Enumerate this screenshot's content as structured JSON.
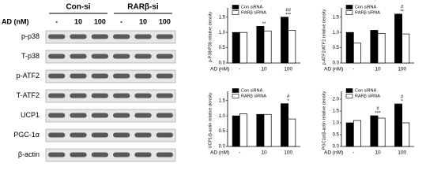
{
  "blot": {
    "groups": [
      "Con-si",
      "RARβ-si"
    ],
    "dose_label": "AD (nM)",
    "lanes": [
      "-",
      "10",
      "100",
      "-",
      "10",
      "100"
    ],
    "rows": [
      "p-p38",
      "T-p38",
      "p-ATF2",
      "T-ATF2",
      "UCP1",
      "PGC-1α",
      "β-actin"
    ]
  },
  "chart_data": [
    {
      "type": "bar",
      "ylabel": "p-P38/P38 relative density",
      "xlabel": "AD (nM)",
      "categories": [
        "-",
        "10",
        "100"
      ],
      "series": [
        {
          "name": "Con siRNA",
          "color": "#000000",
          "values": [
            1.0,
            1.2,
            1.5
          ]
        },
        {
          "name": "RARβ siRNA",
          "color": "#ffffff",
          "values": [
            1.0,
            1.05,
            1.07
          ]
        }
      ],
      "ylim": [
        0,
        1.7
      ],
      "yticks": [
        {
          "value": 0,
          "label": "0.0"
        },
        0.5,
        {
          "value": 1,
          "label": "1.0"
        },
        1.5
      ],
      "annotations": [
        {
          "text": "**",
          "category": "10"
        },
        {
          "text": "***",
          "category": "100"
        },
        {
          "text": "##",
          "category": "100"
        }
      ]
    },
    {
      "type": "bar",
      "ylabel": "p-ATF2/ATF2 relative density",
      "xlabel": "AD (nM)",
      "categories": [
        "-",
        "10",
        "100"
      ],
      "series": [
        {
          "name": "Con siRNA",
          "color": "#000000",
          "values": [
            1.0,
            1.07,
            1.6
          ]
        },
        {
          "name": "RARβ siRNA",
          "color": "#ffffff",
          "values": [
            0.65,
            0.97,
            0.95
          ]
        }
      ],
      "ylim": [
        0,
        1.7
      ],
      "yticks": [
        {
          "value": 0,
          "label": "0.0"
        },
        0.5,
        {
          "value": 1,
          "label": "1.0"
        },
        1.5
      ],
      "annotations": [
        {
          "text": "**",
          "category": "100"
        },
        {
          "text": "#",
          "category": "100"
        }
      ]
    },
    {
      "type": "bar",
      "ylabel": "UCP1/β-actin relative density",
      "xlabel": "AD (nM)",
      "categories": [
        "-",
        "10",
        "100"
      ],
      "series": [
        {
          "name": "Con siRNA",
          "color": "#000000",
          "values": [
            1.0,
            1.05,
            1.4
          ]
        },
        {
          "name": "RARβ siRNA",
          "color": "#ffffff",
          "values": [
            1.07,
            1.05,
            0.9
          ]
        }
      ],
      "ylim": [
        0,
        1.7
      ],
      "yticks": [
        {
          "value": 0,
          "label": "0.0"
        },
        0.5,
        {
          "value": 1,
          "label": "1.0"
        },
        1.5
      ],
      "annotations": [
        {
          "text": "*",
          "category": "100"
        },
        {
          "text": "#",
          "category": "100"
        }
      ]
    },
    {
      "type": "bar",
      "ylabel": "PGC1α/β-actin relative density",
      "xlabel": "AD (nM)",
      "categories": [
        "-",
        "10",
        "100"
      ],
      "series": [
        {
          "name": "Con siRNA",
          "color": "#000000",
          "values": [
            1.0,
            1.3,
            1.8
          ]
        },
        {
          "name": "RARβ siRNA",
          "color": "#ffffff",
          "values": [
            1.1,
            1.2,
            1.0
          ]
        }
      ],
      "ylim": [
        0,
        2.2
      ],
      "yticks": [
        {
          "value": 0,
          "label": "0.0"
        },
        0.5,
        {
          "value": 1,
          "label": "1.0"
        },
        1.5,
        {
          "value": 2,
          "label": "2.0"
        }
      ],
      "annotations": [
        {
          "text": "***",
          "category": "10"
        },
        {
          "text": "#",
          "category": "10"
        },
        {
          "text": "*",
          "category": "100"
        },
        {
          "text": "#",
          "category": "100"
        }
      ]
    }
  ]
}
